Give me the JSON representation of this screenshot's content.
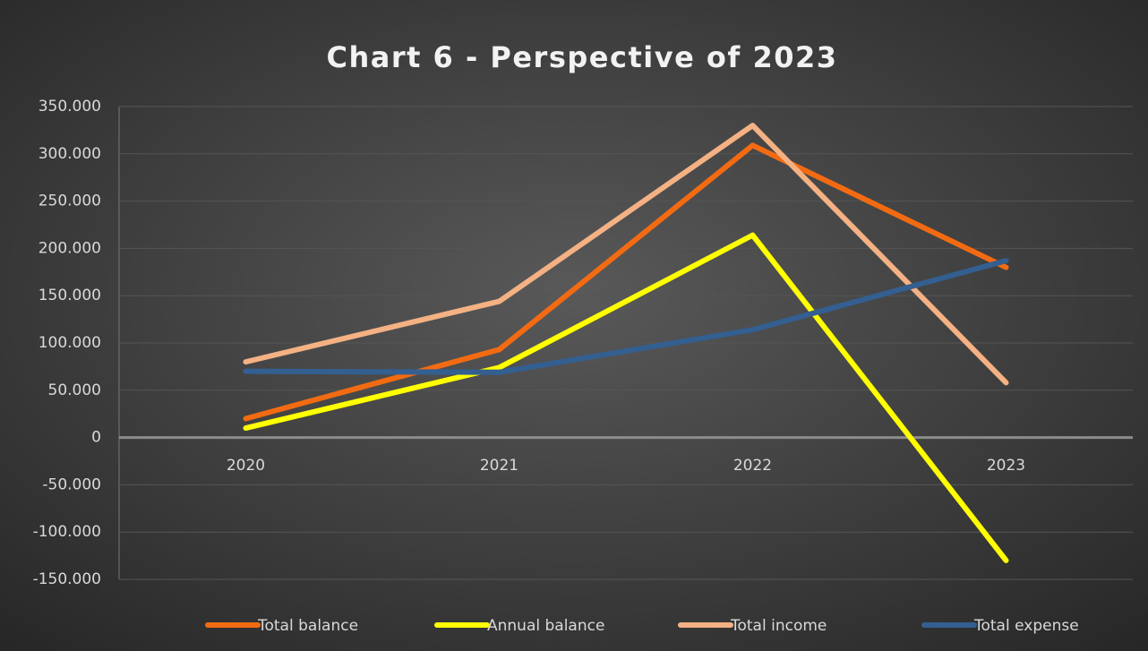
{
  "chart_data": {
    "type": "line",
    "title": "Chart 6 - Perspective of 2023",
    "categories": [
      "2020",
      "2021",
      "2022",
      "2023"
    ],
    "series": [
      {
        "name": "Total balance",
        "color": "#f26b12",
        "values": [
          20000,
          93000,
          309000,
          180000
        ]
      },
      {
        "name": "Annual balance",
        "color": "#ffff00",
        "values": [
          10000,
          74000,
          214000,
          -130000
        ]
      },
      {
        "name": "Total income",
        "color": "#f4b183",
        "values": [
          80000,
          144000,
          330000,
          58000
        ]
      },
      {
        "name": "Total expense",
        "color": "#335f91",
        "values": [
          70000,
          69000,
          114000,
          187000
        ]
      }
    ],
    "ylim": [
      -150000,
      350000
    ],
    "yticks": [
      {
        "value": -150000,
        "label": "-150.000"
      },
      {
        "value": -100000,
        "label": "-100.000"
      },
      {
        "value": -50000,
        "label": "-50.000"
      },
      0,
      {
        "value": 50000,
        "label": "50.000"
      },
      {
        "value": 100000,
        "label": "100.000"
      },
      {
        "value": 150000,
        "label": "150.000"
      },
      {
        "value": 200000,
        "label": "200.000"
      },
      {
        "value": 250000,
        "label": "250.000"
      },
      {
        "value": 300000,
        "label": "300.000"
      },
      {
        "value": 350000,
        "label": "350.000"
      }
    ],
    "grid": true,
    "legend": "bottom"
  }
}
